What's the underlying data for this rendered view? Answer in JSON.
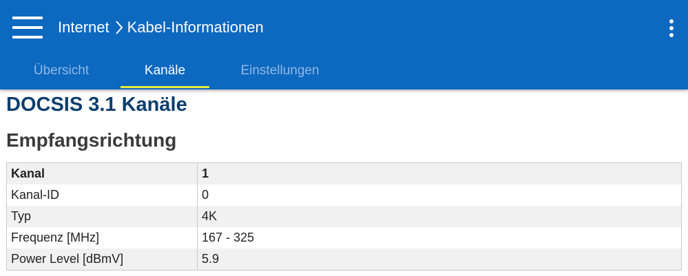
{
  "header": {
    "breadcrumb": [
      "Internet",
      "Kabel-Informationen"
    ]
  },
  "tabs": [
    "Übersicht",
    "Kanäle",
    "Einstellungen"
  ],
  "section": {
    "title": "DOCSIS 3.1 Kanäle",
    "subtitle": "Empfangsrichtung"
  },
  "table": {
    "header": [
      "Kanal",
      1
    ],
    "rows": [
      [
        "Kanal-ID",
        0
      ],
      [
        "Typ",
        "4K"
      ],
      [
        "Frequenz [MHz]",
        "167 - 325"
      ],
      [
        "Power Level [dBmV]",
        5.9
      ]
    ]
  }
}
